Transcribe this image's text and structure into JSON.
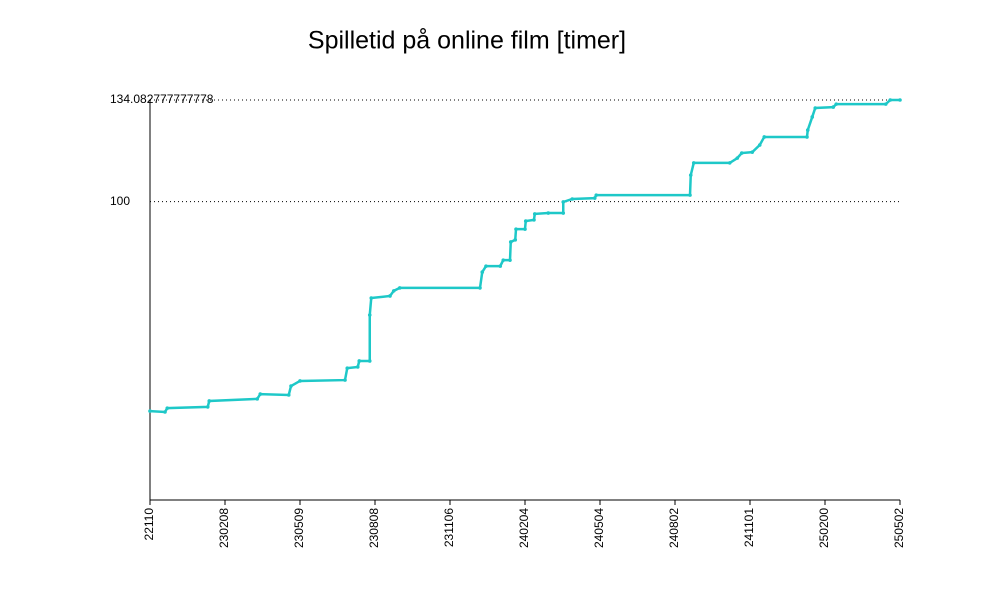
{
  "chart_data": {
    "type": "line",
    "title": "Spilletid på online film [timer]",
    "x": [
      0,
      0.2,
      0.23,
      0.77,
      0.79,
      1.43,
      1.47,
      1.85,
      1.88,
      2,
      2.6,
      2.63,
      2.77,
      2.79,
      2.93,
      2.93,
      2.95,
      3.2,
      3.25,
      3.33,
      4.4,
      4.43,
      4.48,
      4.67,
      4.71,
      4.8,
      4.81,
      4.87,
      4.88,
      5,
      5.01,
      5.12,
      5.13,
      5.31,
      5.51,
      5.51,
      5.63,
      5.93,
      5.95,
      7.2,
      7.21,
      7.25,
      7.73,
      7.83,
      7.89,
      8.03,
      8.13,
      8.19,
      8.76,
      8.77,
      8.83,
      8.87,
      9.11,
      9.15,
      9.81,
      9.87,
      10
    ],
    "values": [
      29.8,
      29.5,
      30.8,
      31.2,
      33.2,
      33.9,
      35.5,
      35.2,
      38.2,
      39.9,
      40.2,
      44.2,
      44.6,
      46.6,
      46.6,
      62,
      67.7,
      68.4,
      70.1,
      71.1,
      71.1,
      76.4,
      78.4,
      78.4,
      80.4,
      80.4,
      86.5,
      87.2,
      90.8,
      90.8,
      93.5,
      93.9,
      95.9,
      96.2,
      96.2,
      99.9,
      100.9,
      101.2,
      102.2,
      102.2,
      108.9,
      113,
      113,
      114.6,
      116.3,
      116.6,
      119,
      121.7,
      121.7,
      124,
      128.4,
      131.4,
      131.7,
      132.7,
      132.7,
      134.08,
      134.08
    ],
    "color": "#1ec8c8",
    "xlim": [
      0,
      10
    ],
    "xticks": [
      {
        "value": 0,
        "label": "22110"
      },
      {
        "value": 1,
        "label": "230208"
      },
      {
        "value": 2,
        "label": "230509"
      },
      {
        "value": 3,
        "label": "230808"
      },
      {
        "value": 4,
        "label": "231106"
      },
      {
        "value": 5,
        "label": "240204"
      },
      {
        "value": 6,
        "label": "240504"
      },
      {
        "value": 7,
        "label": "240802"
      },
      {
        "value": 8,
        "label": "241101"
      },
      {
        "value": 9,
        "label": "250200"
      },
      {
        "value": 10,
        "label": "250502"
      }
    ],
    "ylim": [
      0,
      134.082777777778
    ],
    "yticks": [
      100,
      134.082777777778
    ],
    "grid": true
  }
}
